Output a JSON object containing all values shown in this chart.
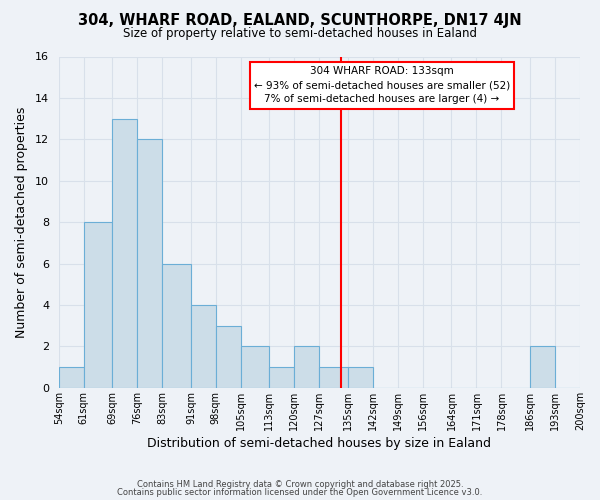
{
  "title": "304, WHARF ROAD, EALAND, SCUNTHORPE, DN17 4JN",
  "subtitle": "Size of property relative to semi-detached houses in Ealand",
  "xlabel": "Distribution of semi-detached houses by size in Ealand",
  "ylabel": "Number of semi-detached properties",
  "bin_edges": [
    54,
    61,
    69,
    76,
    83,
    91,
    98,
    105,
    113,
    120,
    127,
    135,
    142,
    149,
    156,
    164,
    171,
    178,
    186,
    193,
    200
  ],
  "counts": [
    1,
    8,
    13,
    12,
    6,
    4,
    3,
    2,
    1,
    2,
    1,
    1,
    0,
    0,
    0,
    0,
    0,
    0,
    2,
    0
  ],
  "tick_labels": [
    "54sqm",
    "61sqm",
    "69sqm",
    "76sqm",
    "83sqm",
    "91sqm",
    "98sqm",
    "105sqm",
    "113sqm",
    "120sqm",
    "127sqm",
    "135sqm",
    "142sqm",
    "149sqm",
    "156sqm",
    "164sqm",
    "171sqm",
    "178sqm",
    "186sqm",
    "193sqm",
    "200sqm"
  ],
  "bar_color": "#ccdde8",
  "bar_edge_color": "#6baed6",
  "vline_x": 133,
  "vline_color": "red",
  "annotation_title": "304 WHARF ROAD: 133sqm",
  "annotation_line1": "← 93% of semi-detached houses are smaller (52)",
  "annotation_line2": "7% of semi-detached houses are larger (4) →",
  "ylim": [
    0,
    16
  ],
  "yticks": [
    0,
    2,
    4,
    6,
    8,
    10,
    12,
    14,
    16
  ],
  "bg_color": "#eef2f7",
  "grid_color": "#d8e0ea",
  "footer1": "Contains HM Land Registry data © Crown copyright and database right 2025.",
  "footer2": "Contains public sector information licensed under the Open Government Licence v3.0."
}
